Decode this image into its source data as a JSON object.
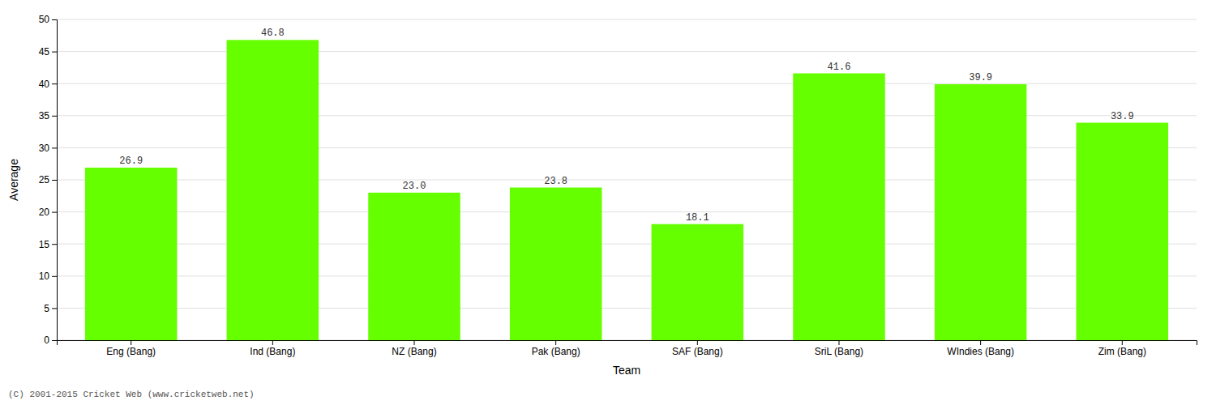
{
  "chart_data": {
    "type": "bar",
    "categories": [
      "Eng (Bang)",
      "Ind (Bang)",
      "NZ (Bang)",
      "Pak (Bang)",
      "SAF (Bang)",
      "SriL (Bang)",
      "WIndies (Bang)",
      "Zim (Bang)"
    ],
    "values": [
      26.9,
      46.8,
      23.0,
      23.8,
      18.1,
      41.6,
      39.9,
      33.9
    ],
    "value_labels": [
      "26.9",
      "46.8",
      "23.0",
      "23.8",
      "18.1",
      "41.6",
      "39.9",
      "33.9"
    ],
    "color": "#66ff00",
    "xlabel": "Team",
    "ylabel": "Average",
    "ylim": [
      0,
      50
    ],
    "yticks": [
      0,
      5,
      10,
      15,
      20,
      25,
      30,
      35,
      40,
      45,
      50
    ],
    "grid": true,
    "data_labels": true,
    "footnote": "(C) 2001-2015 Cricket Web (www.cricketweb.net)"
  }
}
